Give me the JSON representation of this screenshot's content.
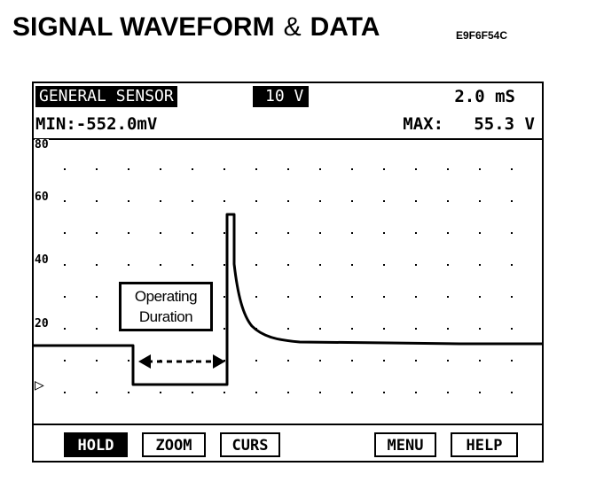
{
  "page": {
    "title_part1": "SIGNAL WAVEFORM",
    "title_amp": "&",
    "title_part2": "DATA",
    "code": "E9F6F54C"
  },
  "scope": {
    "sensor_label": "GENERAL SENSOR",
    "volt_range": "10 V",
    "time_base": "2.0 mS",
    "min_readout": "MIN:-552.0mV",
    "max_label": "MAX:",
    "max_value": "55.3 V",
    "y_ticks": [
      "80",
      "60",
      "40",
      "20"
    ],
    "annotation_line1": "Operating",
    "annotation_line2": "Duration",
    "trigger_marker": "▷"
  },
  "buttons": {
    "hold": "HOLD",
    "zoom": "ZOOM",
    "curs": "CURS",
    "menu": "MENU",
    "help": "HELP"
  },
  "colors": {
    "trace": "#000000",
    "background": "#ffffff",
    "active_button": "#000000"
  }
}
